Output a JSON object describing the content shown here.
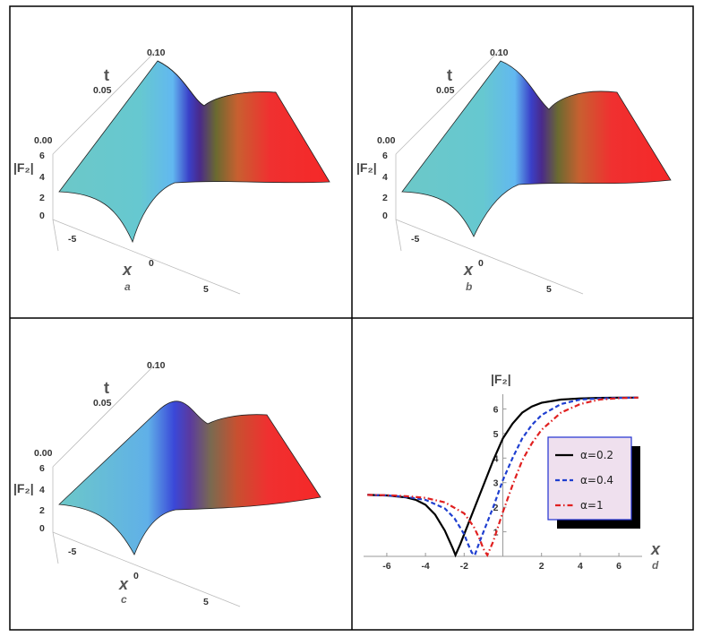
{
  "panels": {
    "a": {
      "label": "a",
      "t_name": "t",
      "t_ticks": [
        "0.00",
        "0.05",
        "0.10"
      ],
      "f_name": "|F₂|",
      "f_ticks": [
        "0",
        "2",
        "4",
        "6"
      ],
      "x_name": "x",
      "x_ticks": [
        "-5",
        "0",
        "5"
      ]
    },
    "b": {
      "label": "b",
      "t_name": "t",
      "t_ticks": [
        "0.00",
        "0.05",
        "0.10"
      ],
      "f_name": "|F₂|",
      "f_ticks": [
        "0",
        "2",
        "4",
        "6"
      ],
      "x_name": "x",
      "x_ticks": [
        "-5",
        "0",
        "5"
      ]
    },
    "c": {
      "label": "c",
      "t_name": "t",
      "t_ticks": [
        "0.00",
        "0.05",
        "0.10"
      ],
      "f_name": "|F₂|",
      "f_ticks": [
        "0",
        "2",
        "4",
        "6"
      ],
      "x_name": "x",
      "x_ticks": [
        "-5",
        "0",
        "5"
      ]
    }
  },
  "chart_data": {
    "type": "line",
    "panel_label": "d",
    "xlabel": "x",
    "ylabel": "|F₂|",
    "xlim": [
      -7.2,
      7.2
    ],
    "ylim": [
      0,
      6.6
    ],
    "x_ticks": [
      -6,
      -4,
      -2,
      2,
      4,
      6
    ],
    "y_ticks": [
      1,
      2,
      3,
      4,
      5,
      6
    ],
    "grid": false,
    "legend_position": "center-right",
    "series": [
      {
        "name": "α=0.2",
        "color": "#000000",
        "dash": "solid",
        "x": [
          -7,
          -6,
          -5,
          -4.5,
          -4,
          -3.5,
          -3,
          -2.6,
          -2.45,
          -2.2,
          -2,
          -1.5,
          -1,
          -0.5,
          0,
          0.5,
          1,
          1.5,
          2,
          3,
          4,
          5,
          6,
          7
        ],
        "y": [
          2.5,
          2.48,
          2.4,
          2.3,
          2.1,
          1.7,
          1.05,
          0.35,
          0.05,
          0.5,
          0.9,
          1.9,
          2.9,
          3.9,
          4.8,
          5.4,
          5.85,
          6.1,
          6.25,
          6.38,
          6.43,
          6.45,
          6.46,
          6.46
        ]
      },
      {
        "name": "α=0.4",
        "color": "#1f3fd0",
        "dash": "dashed",
        "x": [
          -7,
          -6,
          -5,
          -4,
          -3,
          -2.5,
          -2,
          -1.8,
          -1.6,
          -1.45,
          -1.2,
          -1,
          -0.5,
          0,
          0.5,
          1,
          1.5,
          2,
          3,
          4,
          5,
          6,
          7
        ],
        "y": [
          2.5,
          2.48,
          2.42,
          2.3,
          1.95,
          1.55,
          0.9,
          0.5,
          0.15,
          0.05,
          0.6,
          1.0,
          2.0,
          3.1,
          4.0,
          4.8,
          5.35,
          5.75,
          6.2,
          6.38,
          6.43,
          6.45,
          6.46
        ]
      },
      {
        "name": "α=1",
        "color": "#e02020",
        "dash": "dashdot",
        "x": [
          -7,
          -6,
          -5,
          -4,
          -3,
          -2,
          -1.5,
          -1.2,
          -1.0,
          -0.8,
          -0.5,
          0,
          0.5,
          1,
          1.5,
          2,
          3,
          4,
          5,
          6,
          7
        ],
        "y": [
          2.5,
          2.49,
          2.45,
          2.38,
          2.2,
          1.75,
          1.2,
          0.7,
          0.3,
          0.05,
          0.6,
          1.8,
          2.9,
          3.9,
          4.6,
          5.15,
          5.85,
          6.2,
          6.38,
          6.44,
          6.46
        ]
      }
    ]
  }
}
